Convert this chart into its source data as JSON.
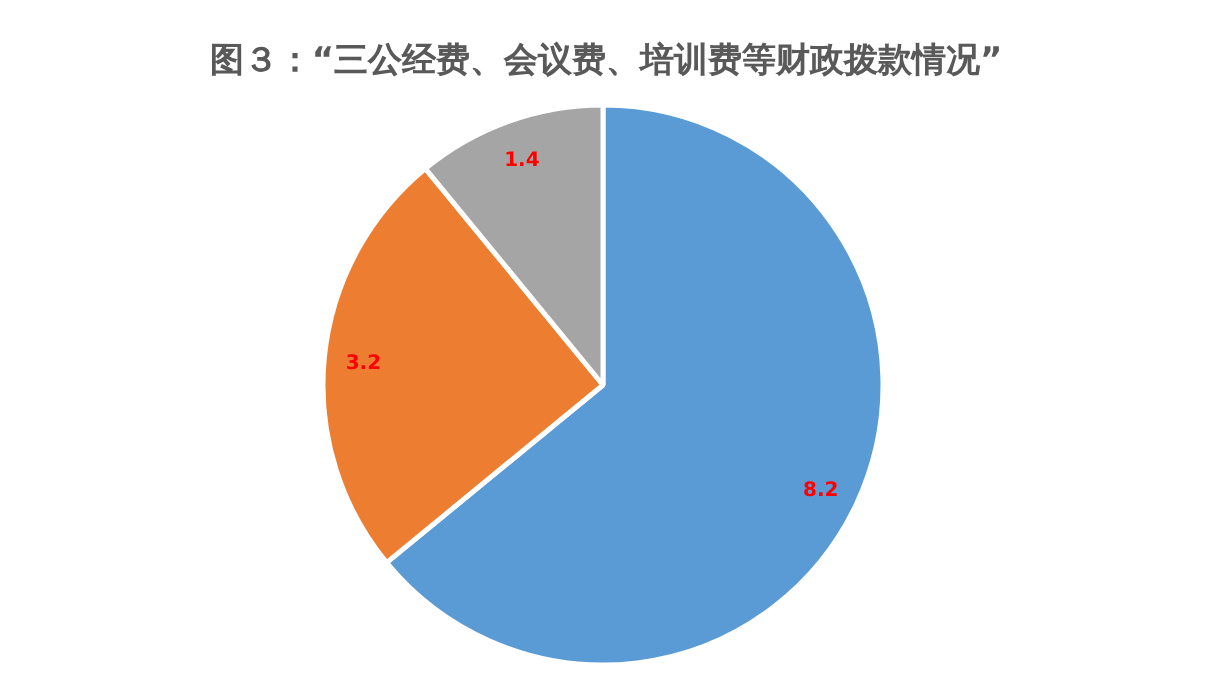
{
  "chart_data": {
    "type": "pie",
    "title": "图３：“三公经费、会议费、培训费等财政拨款情况”",
    "categories": [
      null,
      null,
      null
    ],
    "values": [
      8.2,
      3.2,
      1.4
    ],
    "colors": [
      "#5b9bd5",
      "#ed7d31",
      "#a5a5a5"
    ],
    "data_labels": true
  }
}
